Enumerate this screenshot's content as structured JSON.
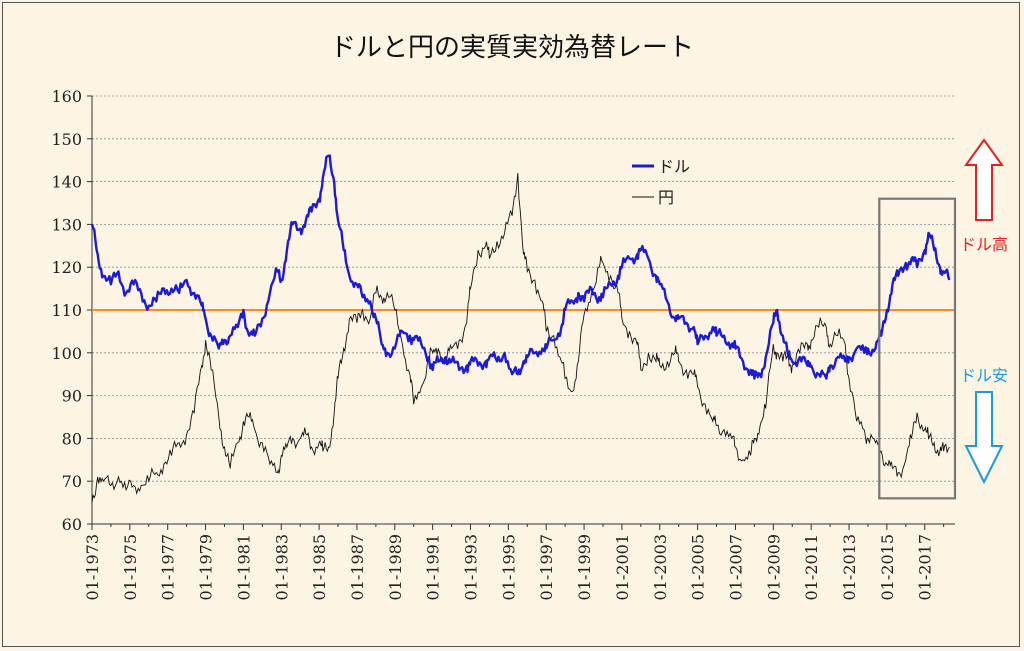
{
  "chart_data": {
    "type": "line",
    "title": "ドルと円の実質実効為替レート",
    "xlabel": "",
    "ylabel": "",
    "ylim": [
      60,
      160
    ],
    "yticks": [
      60,
      70,
      80,
      90,
      100,
      110,
      120,
      130,
      140,
      150,
      160
    ],
    "xtick_labels": [
      "01-1973",
      "01-1975",
      "01-1977",
      "01-1979",
      "01-1981",
      "01-1983",
      "01-1985",
      "01-1987",
      "01-1989",
      "01-1991",
      "01-1993",
      "01-1995",
      "01-1997",
      "01-1999",
      "01-2001",
      "01-2003",
      "01-2005",
      "01-2007",
      "01-2009",
      "01-2011",
      "01-2013",
      "01-2015",
      "01-2017"
    ],
    "grid": "horizontal dotted",
    "legend_position": "top-center",
    "reference_line": {
      "value": 110,
      "color": "#ff8c1a"
    },
    "series": [
      {
        "name": "ドル",
        "color": "#1a1adc",
        "points": [
          [
            1973.0,
            130
          ],
          [
            1973.3,
            123
          ],
          [
            1973.6,
            118
          ],
          [
            1974.0,
            116
          ],
          [
            1974.4,
            119
          ],
          [
            1974.8,
            114
          ],
          [
            1975.2,
            116
          ],
          [
            1975.6,
            114
          ],
          [
            1976.0,
            111
          ],
          [
            1976.4,
            112
          ],
          [
            1976.8,
            115
          ],
          [
            1977.2,
            115
          ],
          [
            1977.6,
            114
          ],
          [
            1978.0,
            117
          ],
          [
            1978.4,
            114
          ],
          [
            1978.8,
            111
          ],
          [
            1979.0,
            108
          ],
          [
            1979.3,
            104
          ],
          [
            1979.7,
            101
          ],
          [
            1980.0,
            103
          ],
          [
            1980.3,
            104
          ],
          [
            1980.7,
            106
          ],
          [
            1981.0,
            110
          ],
          [
            1981.3,
            104
          ],
          [
            1981.6,
            104
          ],
          [
            1982.0,
            108
          ],
          [
            1982.4,
            114
          ],
          [
            1982.8,
            119
          ],
          [
            1983.0,
            117
          ],
          [
            1983.3,
            124
          ],
          [
            1983.6,
            130
          ],
          [
            1984.0,
            129
          ],
          [
            1984.3,
            131
          ],
          [
            1984.6,
            133
          ],
          [
            1985.0,
            136
          ],
          [
            1985.2,
            141
          ],
          [
            1985.5,
            146
          ],
          [
            1985.8,
            140
          ],
          [
            1986.0,
            131
          ],
          [
            1986.3,
            124
          ],
          [
            1986.6,
            118
          ],
          [
            1987.0,
            116
          ],
          [
            1987.3,
            113
          ],
          [
            1987.7,
            112
          ],
          [
            1988.0,
            108
          ],
          [
            1988.3,
            102
          ],
          [
            1988.6,
            100
          ],
          [
            1989.0,
            101
          ],
          [
            1989.4,
            105
          ],
          [
            1989.8,
            104
          ],
          [
            1990.0,
            103
          ],
          [
            1990.4,
            102
          ],
          [
            1990.8,
            99
          ],
          [
            1991.0,
            96
          ],
          [
            1991.3,
            98
          ],
          [
            1991.7,
            99
          ],
          [
            1992.0,
            98
          ],
          [
            1992.4,
            96
          ],
          [
            1992.8,
            97
          ],
          [
            1993.0,
            98
          ],
          [
            1993.4,
            97
          ],
          [
            1993.8,
            98
          ],
          [
            1994.0,
            99
          ],
          [
            1994.4,
            98
          ],
          [
            1994.8,
            100
          ],
          [
            1995.2,
            95
          ],
          [
            1995.5,
            95
          ],
          [
            1995.8,
            98
          ],
          [
            1996.0,
            99
          ],
          [
            1996.4,
            100
          ],
          [
            1996.8,
            101
          ],
          [
            1997.0,
            101
          ],
          [
            1997.4,
            103
          ],
          [
            1997.8,
            106
          ],
          [
            1998.0,
            110
          ],
          [
            1998.4,
            112
          ],
          [
            1998.7,
            114
          ],
          [
            1999.0,
            112
          ],
          [
            1999.4,
            115
          ],
          [
            1999.8,
            113
          ],
          [
            2000.0,
            113
          ],
          [
            2000.4,
            116
          ],
          [
            2000.8,
            118
          ],
          [
            2001.0,
            120
          ],
          [
            2001.4,
            122
          ],
          [
            2001.8,
            123
          ],
          [
            2002.0,
            124
          ],
          [
            2002.4,
            122
          ],
          [
            2002.8,
            118
          ],
          [
            2003.0,
            116
          ],
          [
            2003.4,
            112
          ],
          [
            2003.8,
            108
          ],
          [
            2004.0,
            108
          ],
          [
            2004.4,
            107
          ],
          [
            2004.8,
            106
          ],
          [
            2005.0,
            102
          ],
          [
            2005.4,
            104
          ],
          [
            2005.8,
            106
          ],
          [
            2006.0,
            104
          ],
          [
            2006.4,
            104
          ],
          [
            2006.8,
            102
          ],
          [
            2007.0,
            101
          ],
          [
            2007.4,
            98
          ],
          [
            2007.8,
            96
          ],
          [
            2008.0,
            94
          ],
          [
            2008.3,
            95
          ],
          [
            2008.6,
            99
          ],
          [
            2009.0,
            107
          ],
          [
            2009.2,
            110
          ],
          [
            2009.5,
            104
          ],
          [
            2009.8,
            99
          ],
          [
            2010.0,
            98
          ],
          [
            2010.4,
            99
          ],
          [
            2010.8,
            97
          ],
          [
            2011.0,
            97
          ],
          [
            2011.4,
            95
          ],
          [
            2011.8,
            94
          ],
          [
            2012.0,
            97
          ],
          [
            2012.4,
            99
          ],
          [
            2012.8,
            98
          ],
          [
            2013.0,
            99
          ],
          [
            2013.4,
            101
          ],
          [
            2013.8,
            100
          ],
          [
            2014.0,
            101
          ],
          [
            2014.4,
            101
          ],
          [
            2014.7,
            104
          ],
          [
            2015.0,
            110
          ],
          [
            2015.3,
            116
          ],
          [
            2015.6,
            118
          ],
          [
            2016.0,
            121
          ],
          [
            2016.3,
            122
          ],
          [
            2016.6,
            120
          ],
          [
            2017.0,
            124
          ],
          [
            2017.2,
            128
          ],
          [
            2017.5,
            124
          ],
          [
            2017.8,
            120
          ],
          [
            2018.0,
            119
          ],
          [
            2018.3,
            117
          ]
        ]
      },
      {
        "name": "円",
        "color": "#111111",
        "points": [
          [
            1973.0,
            65
          ],
          [
            1973.3,
            71
          ],
          [
            1973.6,
            70
          ],
          [
            1974.0,
            69
          ],
          [
            1974.4,
            71
          ],
          [
            1974.8,
            68
          ],
          [
            1975.2,
            69
          ],
          [
            1975.6,
            69
          ],
          [
            1976.0,
            70
          ],
          [
            1976.4,
            72
          ],
          [
            1976.8,
            74
          ],
          [
            1977.2,
            76
          ],
          [
            1977.6,
            79
          ],
          [
            1978.0,
            81
          ],
          [
            1978.4,
            86
          ],
          [
            1978.8,
            97
          ],
          [
            1979.0,
            103
          ],
          [
            1979.3,
            96
          ],
          [
            1979.7,
            85
          ],
          [
            1980.0,
            78
          ],
          [
            1980.3,
            73
          ],
          [
            1980.7,
            79
          ],
          [
            1981.0,
            84
          ],
          [
            1981.3,
            85
          ],
          [
            1981.6,
            82
          ],
          [
            1982.0,
            79
          ],
          [
            1982.4,
            74
          ],
          [
            1982.8,
            72
          ],
          [
            1983.0,
            76
          ],
          [
            1983.3,
            78
          ],
          [
            1983.6,
            80
          ],
          [
            1984.0,
            80
          ],
          [
            1984.3,
            81
          ],
          [
            1984.6,
            78
          ],
          [
            1985.0,
            79
          ],
          [
            1985.2,
            77
          ],
          [
            1985.5,
            78
          ],
          [
            1985.8,
            86
          ],
          [
            1986.0,
            94
          ],
          [
            1986.3,
            101
          ],
          [
            1986.6,
            108
          ],
          [
            1987.0,
            107
          ],
          [
            1987.3,
            110
          ],
          [
            1987.7,
            108
          ],
          [
            1988.0,
            114
          ],
          [
            1988.3,
            113
          ],
          [
            1988.6,
            114
          ],
          [
            1989.0,
            110
          ],
          [
            1989.4,
            102
          ],
          [
            1989.8,
            95
          ],
          [
            1990.0,
            88
          ],
          [
            1990.4,
            92
          ],
          [
            1990.8,
            99
          ],
          [
            1991.0,
            100
          ],
          [
            1991.3,
            101
          ],
          [
            1991.7,
            98
          ],
          [
            1992.0,
            101
          ],
          [
            1992.4,
            103
          ],
          [
            1992.8,
            107
          ],
          [
            1993.0,
            115
          ],
          [
            1993.4,
            124
          ],
          [
            1993.8,
            125
          ],
          [
            1994.0,
            122
          ],
          [
            1994.4,
            126
          ],
          [
            1994.8,
            128
          ],
          [
            1995.2,
            132
          ],
          [
            1995.5,
            142
          ],
          [
            1995.8,
            123
          ],
          [
            1996.0,
            119
          ],
          [
            1996.4,
            117
          ],
          [
            1996.8,
            112
          ],
          [
            1997.0,
            105
          ],
          [
            1997.4,
            104
          ],
          [
            1997.8,
            98
          ],
          [
            1998.0,
            94
          ],
          [
            1998.4,
            91
          ],
          [
            1998.7,
            98
          ],
          [
            1999.0,
            109
          ],
          [
            1999.4,
            114
          ],
          [
            1999.8,
            120
          ],
          [
            2000.0,
            121
          ],
          [
            2000.4,
            118
          ],
          [
            2000.8,
            114
          ],
          [
            2001.0,
            108
          ],
          [
            2001.4,
            105
          ],
          [
            2001.8,
            102
          ],
          [
            2002.0,
            96
          ],
          [
            2002.4,
            100
          ],
          [
            2002.8,
            98
          ],
          [
            2003.0,
            97
          ],
          [
            2003.4,
            98
          ],
          [
            2003.8,
            100
          ],
          [
            2004.0,
            98
          ],
          [
            2004.4,
            96
          ],
          [
            2004.8,
            95
          ],
          [
            2005.0,
            92
          ],
          [
            2005.4,
            88
          ],
          [
            2005.8,
            84
          ],
          [
            2006.0,
            83
          ],
          [
            2006.4,
            82
          ],
          [
            2006.8,
            80
          ],
          [
            2007.0,
            78
          ],
          [
            2007.4,
            75
          ],
          [
            2007.8,
            76
          ],
          [
            2008.0,
            80
          ],
          [
            2008.3,
            83
          ],
          [
            2008.6,
            87
          ],
          [
            2009.0,
            102
          ],
          [
            2009.2,
            100
          ],
          [
            2009.5,
            98
          ],
          [
            2009.8,
            99
          ],
          [
            2010.0,
            97
          ],
          [
            2010.4,
            100
          ],
          [
            2010.8,
            102
          ],
          [
            2011.0,
            103
          ],
          [
            2011.4,
            106
          ],
          [
            2011.8,
            106
          ],
          [
            2012.0,
            102
          ],
          [
            2012.4,
            104
          ],
          [
            2012.8,
            102
          ],
          [
            2013.0,
            94
          ],
          [
            2013.4,
            84
          ],
          [
            2013.8,
            82
          ],
          [
            2014.0,
            80
          ],
          [
            2014.4,
            79
          ],
          [
            2014.7,
            77
          ],
          [
            2015.0,
            74
          ],
          [
            2015.3,
            73
          ],
          [
            2015.6,
            72
          ],
          [
            2016.0,
            75
          ],
          [
            2016.3,
            80
          ],
          [
            2016.6,
            86
          ],
          [
            2017.0,
            82
          ],
          [
            2017.2,
            80
          ],
          [
            2017.5,
            79
          ],
          [
            2017.8,
            77
          ],
          [
            2018.0,
            77
          ],
          [
            2018.3,
            78
          ]
        ]
      }
    ],
    "highlight_box": {
      "x_range": [
        2014.6,
        2018.6
      ],
      "y_range": [
        66,
        136
      ]
    },
    "annotations": {
      "up_label": "ドル高",
      "up_color": "#e82020",
      "down_label": "ドル安",
      "down_color": "#1a9ae0"
    }
  }
}
